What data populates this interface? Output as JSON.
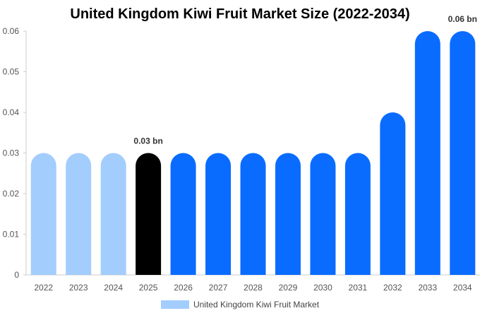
{
  "chart_data": {
    "type": "bar",
    "title": "United Kingdom Kiwi Fruit Market Size (2022-2034)",
    "categories": [
      "2022",
      "2023",
      "2024",
      "2025",
      "2026",
      "2027",
      "2028",
      "2029",
      "2030",
      "2031",
      "2032",
      "2033",
      "2034"
    ],
    "series": [
      {
        "name": "United Kingdom Kiwi Fruit Market",
        "values": [
          0.03,
          0.03,
          0.03,
          0.03,
          0.03,
          0.03,
          0.03,
          0.03,
          0.03,
          0.03,
          0.04,
          0.06,
          0.06
        ]
      }
    ],
    "bar_colors": [
      "#a3cdfd",
      "#a3cdfd",
      "#a3cdfd",
      "#000000",
      "#0a6cff",
      "#0a6cff",
      "#0a6cff",
      "#0a6cff",
      "#0a6cff",
      "#0a6cff",
      "#0a6cff",
      "#0a6cff",
      "#0a6cff"
    ],
    "data_labels": [
      {
        "category": "2025",
        "text": "0.03 bn"
      },
      {
        "category": "2034",
        "text": "0.06 bn"
      }
    ],
    "y_ticks": [
      "0",
      "0.01",
      "0.02",
      "0.03",
      "0.04",
      "0.05",
      "0.06"
    ],
    "ylim": [
      0,
      0.06
    ],
    "xlabel": "",
    "ylabel": "",
    "grid": false,
    "legend": {
      "label": "United Kingdom Kiwi Fruit Market",
      "color": "#a3cdfd",
      "position": "bottom"
    }
  }
}
